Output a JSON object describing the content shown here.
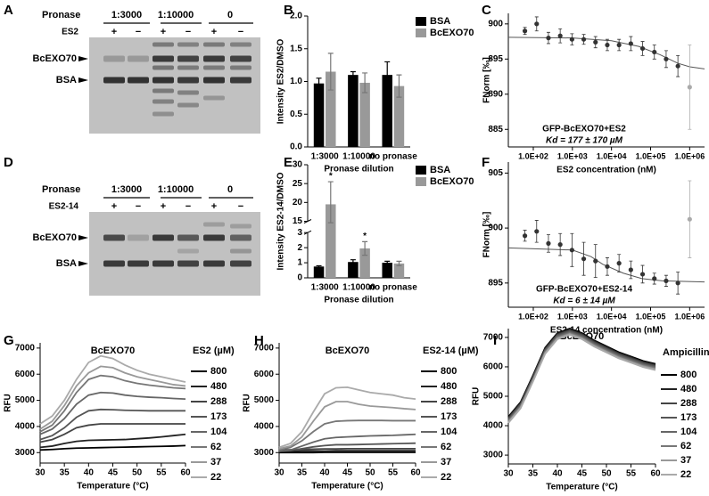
{
  "panel_labels": [
    "A",
    "B",
    "C",
    "D",
    "E",
    "F",
    "G",
    "H",
    "I"
  ],
  "gels": [
    {
      "pronase_label": "Pronase",
      "groups": [
        "1:3000",
        "1:10000",
        "0"
      ],
      "treatment": "ES2",
      "signs": [
        "+",
        "−",
        "+",
        "−",
        "+",
        "−"
      ],
      "bands": [
        "BcEXO70",
        "BSA"
      ]
    },
    {
      "pronase_label": "Pronase",
      "groups": [
        "1:3000",
        "1:10000",
        "0"
      ],
      "treatment": "ES2-14",
      "signs": [
        "+",
        "−",
        "+",
        "−",
        "+",
        "−"
      ],
      "bands": [
        "BcEXO70",
        "BSA"
      ]
    }
  ],
  "chart_data": [
    {
      "type": "bar",
      "categories": [
        "1:3000",
        "1:10000",
        "no pronase"
      ],
      "xlabel": "Pronase dilution",
      "ylabel": "Intensity ES2/DMSO",
      "ylim": [
        0,
        2
      ],
      "yticks": [
        {
          "value": 0,
          "label": "0.0"
        },
        {
          "value": 0.5,
          "label": "0.5"
        },
        {
          "value": 1,
          "label": "1.0"
        },
        {
          "value": 1.5,
          "label": "1.5"
        },
        {
          "value": 2,
          "label": "2.0"
        }
      ],
      "legend": "upper right",
      "series": [
        {
          "name": "BSA",
          "color": "#000000",
          "values": [
            0.97,
            1.1,
            1.1
          ],
          "errors": [
            0.08,
            0.05,
            0.2
          ]
        },
        {
          "name": "BcEXO70",
          "color": "#999999",
          "values": [
            1.15,
            0.98,
            0.93
          ],
          "errors": [
            0.28,
            0.15,
            0.17
          ]
        }
      ]
    },
    {
      "type": "scatter",
      "xscale": "log",
      "xlabel": "ES2 concentration (nM)",
      "ylabel": "FNorm [‰]",
      "xlim": [
        23,
        2400000
      ],
      "xticks": [
        {
          "value": 100,
          "label": "1.0E+02"
        },
        {
          "value": 1000,
          "label": "1.0E+03"
        },
        {
          "value": 10000,
          "label": "1.0E+04"
        },
        {
          "value": 100000,
          "label": "1.0E+05"
        },
        {
          "value": 1000000,
          "label": "1.0E+06"
        }
      ],
      "ylim": [
        882.5,
        901.5
      ],
      "yticks": [
        885,
        890,
        895,
        900
      ],
      "x": [
        61,
        122,
        244,
        488,
        977,
        1953,
        3906,
        7813,
        15625,
        31250,
        62500,
        125000,
        250000,
        500000,
        1000000
      ],
      "values": [
        899,
        900,
        898,
        898.3,
        897.8,
        897.8,
        897.4,
        897,
        897,
        897.2,
        896.5,
        896,
        895,
        894,
        891
      ],
      "errors": [
        0.5,
        1,
        0.8,
        1,
        0.8,
        0.7,
        0.8,
        0.8,
        0.8,
        1,
        1,
        1,
        1.2,
        1.5,
        6
      ],
      "colors": [
        "#333333",
        "#333333",
        "#333333",
        "#333333",
        "#333333",
        "#333333",
        "#333333",
        "#333333",
        "#333333",
        "#333333",
        "#333333",
        "#333333",
        "#333333",
        "#333333",
        "#aaaaaa"
      ],
      "fit": {
        "color": "#555555",
        "x": [
          23,
          1000,
          10000,
          50000,
          177000,
          500000,
          1000000,
          2400000
        ],
        "values": [
          898.1,
          898,
          897.6,
          896.8,
          895.6,
          894.4,
          893.9,
          893.6
        ]
      },
      "annotations": [
        "GFP-BcEXO70+ES2",
        "Kd = 177 ± 170 µM"
      ]
    },
    {
      "type": "bar",
      "categories": [
        "1:3000",
        "1:10000",
        "no pronase"
      ],
      "xlabel": "Pronase dilution",
      "ylabel": "Intensity ES2-14/DMSO",
      "ylim": [
        0,
        30
      ],
      "yticks": [
        0,
        1,
        2,
        3,
        15,
        20,
        25,
        30
      ],
      "axis_break": [
        3,
        15
      ],
      "legend": "upper right",
      "series": [
        {
          "name": "BSA",
          "color": "#000000",
          "values": [
            0.75,
            1.05,
            1
          ],
          "errors": [
            0.05,
            0.15,
            0.1
          ]
        },
        {
          "name": "BcEXO70",
          "color": "#999999",
          "values": [
            19.5,
            1.95,
            0.95
          ],
          "errors": [
            6,
            0.45,
            0.15
          ],
          "significance": [
            "*",
            "*",
            null
          ]
        }
      ]
    },
    {
      "type": "scatter",
      "xscale": "log",
      "xlabel": "ES2-14 concentration (nM)",
      "ylabel": "FNorm [‰]",
      "xlim": [
        23,
        2400000
      ],
      "xticks": [
        {
          "value": 100,
          "label": "1.0E+02"
        },
        {
          "value": 1000,
          "label": "1.0E+03"
        },
        {
          "value": 10000,
          "label": "1.0E+04"
        },
        {
          "value": 100000,
          "label": "1.0E+05"
        },
        {
          "value": 1000000,
          "label": "1.0E+06"
        }
      ],
      "ylim": [
        892.8,
        906
      ],
      "yticks": [
        895,
        900,
        905
      ],
      "x": [
        61,
        122,
        244,
        488,
        977,
        1953,
        3906,
        7813,
        15625,
        31250,
        62500,
        125000,
        250000,
        500000,
        1000000
      ],
      "values": [
        899.3,
        899.7,
        898.6,
        898.5,
        898,
        897.2,
        897,
        896.5,
        896.8,
        896.2,
        895.8,
        895.4,
        895.2,
        895,
        900.8
      ],
      "errors": [
        0.5,
        1,
        0.8,
        1,
        1.5,
        1.5,
        1.5,
        0.8,
        0.8,
        0.8,
        0.8,
        0.5,
        0.5,
        1,
        3.5
      ],
      "colors": [
        "#333333",
        "#333333",
        "#333333",
        "#333333",
        "#333333",
        "#333333",
        "#333333",
        "#333333",
        "#333333",
        "#333333",
        "#333333",
        "#333333",
        "#333333",
        "#333333",
        "#aaaaaa"
      ],
      "fit": {
        "color": "#555555",
        "x": [
          23,
          1000,
          3000,
          6000,
          20000,
          60000,
          200000,
          2400000
        ],
        "values": [
          898.2,
          898,
          897.4,
          896.7,
          895.9,
          895.4,
          895.2,
          895.1
        ]
      },
      "annotations": [
        "GFP-BcEXO70+ES2-14",
        "Kd = 6 ± 14 µM"
      ]
    },
    {
      "type": "line",
      "title": "BcEXO70",
      "legend_title": "ES2 (µM)",
      "legend": "right",
      "xlabel": "Temperature (°C)",
      "ylabel": "RFU",
      "xlim": [
        30,
        60
      ],
      "xticks": [
        30,
        35,
        40,
        45,
        50,
        55,
        60
      ],
      "ylim": [
        2600,
        7200
      ],
      "yticks": [
        3000,
        4000,
        5000,
        6000,
        7000
      ],
      "x": [
        30,
        32.5,
        35,
        37.5,
        40,
        42.5,
        45,
        47.5,
        50,
        52.5,
        55,
        57.5,
        60
      ],
      "series": [
        {
          "name": "800",
          "color": "#000000",
          "values": [
            3100,
            3120,
            3150,
            3170,
            3180,
            3190,
            3200,
            3210,
            3220,
            3230,
            3240,
            3250,
            3270
          ]
        },
        {
          "name": "480",
          "color": "#222222",
          "values": [
            3200,
            3250,
            3350,
            3430,
            3470,
            3480,
            3490,
            3500,
            3530,
            3560,
            3600,
            3650,
            3700
          ]
        },
        {
          "name": "288",
          "color": "#444444",
          "values": [
            3400,
            3500,
            3700,
            3950,
            4050,
            4100,
            4100,
            4100,
            4100,
            4100,
            4100,
            4100,
            4100
          ]
        },
        {
          "name": "173",
          "color": "#555555",
          "values": [
            3500,
            3650,
            3950,
            4350,
            4600,
            4650,
            4640,
            4620,
            4610,
            4600,
            4600,
            4600,
            4600
          ]
        },
        {
          "name": "104",
          "color": "#666666",
          "values": [
            3700,
            3900,
            4300,
            4850,
            5200,
            5300,
            5280,
            5200,
            5150,
            5120,
            5100,
            5070,
            5050
          ]
        },
        {
          "name": "62",
          "color": "#777777",
          "values": [
            3800,
            4050,
            4600,
            5300,
            5800,
            5950,
            5900,
            5750,
            5650,
            5580,
            5530,
            5480,
            5450
          ]
        },
        {
          "name": "37",
          "color": "#999999",
          "values": [
            3900,
            4200,
            4800,
            5550,
            6050,
            6300,
            6250,
            6050,
            5900,
            5800,
            5700,
            5600,
            5550
          ]
        },
        {
          "name": "22",
          "color": "#aaaaaa",
          "values": [
            4100,
            4400,
            5000,
            5800,
            6450,
            6700,
            6600,
            6350,
            6150,
            6000,
            5900,
            5800,
            5700
          ]
        }
      ]
    },
    {
      "type": "line",
      "title": "BcEXO70",
      "legend_title": "ES2-14 (µM)",
      "legend": "right",
      "xlabel": "Temperature (°C)",
      "ylabel": "RFU",
      "xlim": [
        30,
        60
      ],
      "xticks": [
        30,
        35,
        40,
        45,
        50,
        55,
        60
      ],
      "ylim": [
        2600,
        7200
      ],
      "yticks": [
        3000,
        4000,
        5000,
        6000,
        7000
      ],
      "x": [
        30,
        32.5,
        35,
        37.5,
        40,
        42.5,
        45,
        47.5,
        50,
        52.5,
        55,
        57.5,
        60
      ],
      "series": [
        {
          "name": "800",
          "color": "#000000",
          "values": [
            3000,
            3000,
            3000,
            3000,
            3010,
            3010,
            3010,
            3010,
            3010,
            3010,
            3010,
            3010,
            3010
          ]
        },
        {
          "name": "480",
          "color": "#222222",
          "values": [
            3050,
            3050,
            3060,
            3060,
            3060,
            3070,
            3070,
            3070,
            3070,
            3070,
            3070,
            3070,
            3070
          ]
        },
        {
          "name": "288",
          "color": "#444444",
          "values": [
            3100,
            3110,
            3120,
            3130,
            3140,
            3140,
            3150,
            3150,
            3150,
            3150,
            3150,
            3150,
            3150
          ]
        },
        {
          "name": "173",
          "color": "#555555",
          "values": [
            3050,
            3080,
            3150,
            3220,
            3270,
            3300,
            3300,
            3310,
            3320,
            3330,
            3340,
            3350,
            3360
          ]
        },
        {
          "name": "104",
          "color": "#666666",
          "values": [
            3050,
            3100,
            3250,
            3400,
            3530,
            3580,
            3600,
            3620,
            3640,
            3650,
            3660,
            3680,
            3700
          ]
        },
        {
          "name": "62",
          "color": "#777777",
          "values": [
            3100,
            3200,
            3450,
            3800,
            4100,
            4200,
            4220,
            4230,
            4230,
            4230,
            4220,
            4220,
            4220
          ]
        },
        {
          "name": "37",
          "color": "#999999",
          "values": [
            3150,
            3250,
            3600,
            4200,
            4750,
            4950,
            4950,
            4850,
            4780,
            4750,
            4720,
            4680,
            4650
          ]
        },
        {
          "name": "22",
          "color": "#aaaaaa",
          "values": [
            3200,
            3350,
            3800,
            4550,
            5250,
            5480,
            5500,
            5400,
            5300,
            5250,
            5200,
            5100,
            5050
          ]
        }
      ]
    },
    {
      "type": "line",
      "title": "BcEXO70",
      "legend_title": "Ampicillin (µM)",
      "legend": "right",
      "xlabel": "Temperature (°C)",
      "ylabel": "RFU",
      "xlim": [
        30,
        60
      ],
      "xticks": [
        30,
        35,
        40,
        45,
        50,
        55,
        60
      ],
      "ylim": [
        2700,
        7300
      ],
      "yticks": [
        3000,
        4000,
        5000,
        6000,
        7000
      ],
      "x": [
        30,
        32.5,
        35,
        37.5,
        40,
        42.5,
        45,
        47.5,
        50,
        52.5,
        55,
        57.5,
        60
      ],
      "series": [
        {
          "name": "800",
          "color": "#000000",
          "values": [
            4300,
            4800,
            5700,
            6650,
            7150,
            7300,
            7150,
            6900,
            6700,
            6500,
            6350,
            6200,
            6100
          ]
        },
        {
          "name": "480",
          "color": "#222222",
          "values": [
            4270,
            4770,
            5670,
            6620,
            7120,
            7270,
            7120,
            6870,
            6670,
            6470,
            6320,
            6170,
            6070
          ]
        },
        {
          "name": "288",
          "color": "#444444",
          "values": [
            4240,
            4740,
            5640,
            6590,
            7090,
            7240,
            7090,
            6840,
            6640,
            6440,
            6290,
            6140,
            6040
          ]
        },
        {
          "name": "173",
          "color": "#555555",
          "values": [
            4210,
            4710,
            5610,
            6560,
            7060,
            7210,
            7060,
            6810,
            6610,
            6410,
            6260,
            6110,
            6010
          ]
        },
        {
          "name": "104",
          "color": "#666666",
          "values": [
            4180,
            4680,
            5580,
            6530,
            7030,
            7180,
            7030,
            6780,
            6580,
            6380,
            6230,
            6080,
            5980
          ]
        },
        {
          "name": "62",
          "color": "#777777",
          "values": [
            4150,
            4650,
            5550,
            6500,
            7000,
            7150,
            7000,
            6750,
            6550,
            6350,
            6200,
            6050,
            5950
          ]
        },
        {
          "name": "37",
          "color": "#999999",
          "values": [
            4120,
            4620,
            5520,
            6470,
            6970,
            7120,
            6970,
            6720,
            6520,
            6320,
            6170,
            6020,
            5920
          ]
        },
        {
          "name": "22",
          "color": "#aaaaaa",
          "values": [
            4090,
            4590,
            5490,
            6440,
            6940,
            7090,
            6940,
            6690,
            6490,
            6290,
            6140,
            5990,
            5890
          ]
        }
      ]
    }
  ]
}
